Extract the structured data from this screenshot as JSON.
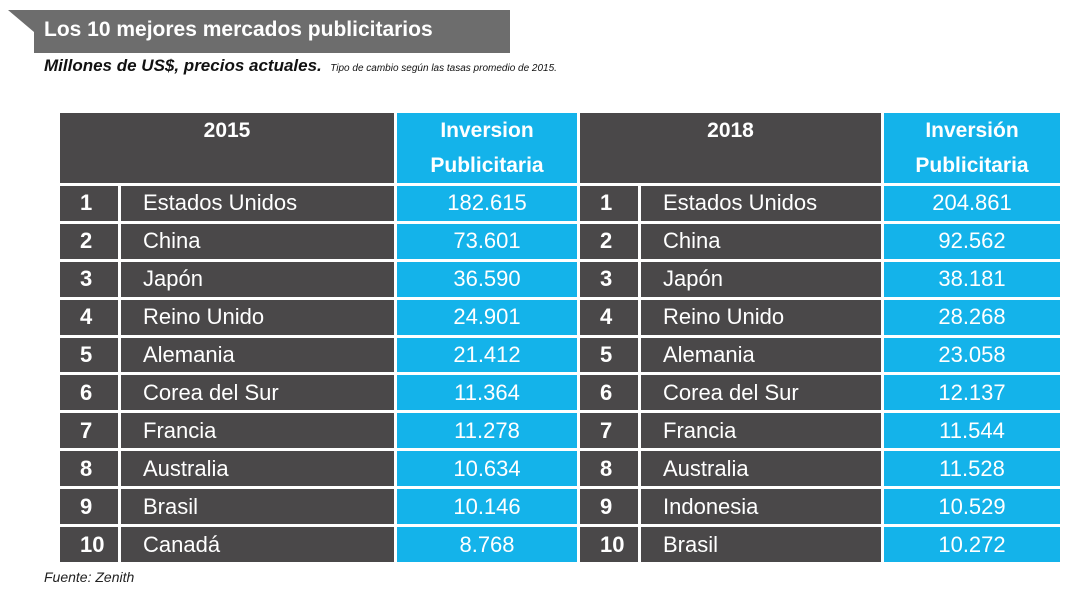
{
  "title": "Los 10 mejores mercados publicitarios",
  "subtitle": "Millones de US$, precios actuales.",
  "subtitle_note": "Tipo de cambio según las tasas promedio de 2015.",
  "source": "Fuente: Zenith",
  "colors": {
    "header_bar": "#6d6d6d",
    "dark_cell": "#4a4849",
    "blue_cell": "#14b3ea"
  },
  "table": {
    "left": {
      "year": "2015",
      "investment_header": "Inversion Publicitaria"
    },
    "right": {
      "year": "2018",
      "investment_header": "Inversión Publicitaria"
    },
    "rows": [
      {
        "rank": "1",
        "country_2015": "Estados Unidos",
        "value_2015": "182.615",
        "country_2018": "Estados Unidos",
        "value_2018": "204.861"
      },
      {
        "rank": "2",
        "country_2015": "China",
        "value_2015": "73.601",
        "country_2018": "China",
        "value_2018": "92.562"
      },
      {
        "rank": "3",
        "country_2015": "Japón",
        "value_2015": "36.590",
        "country_2018": "Japón",
        "value_2018": "38.181"
      },
      {
        "rank": "4",
        "country_2015": "Reino Unido",
        "value_2015": "24.901",
        "country_2018": "Reino Unido",
        "value_2018": "28.268"
      },
      {
        "rank": "5",
        "country_2015": "Alemania",
        "value_2015": "21.412",
        "country_2018": "Alemania",
        "value_2018": "23.058"
      },
      {
        "rank": "6",
        "country_2015": "Corea del Sur",
        "value_2015": "11.364",
        "country_2018": "Corea del Sur",
        "value_2018": "12.137"
      },
      {
        "rank": "7",
        "country_2015": "Francia",
        "value_2015": "11.278",
        "country_2018": "Francia",
        "value_2018": "11.544"
      },
      {
        "rank": "8",
        "country_2015": "Australia",
        "value_2015": "10.634",
        "country_2018": "Australia",
        "value_2018": "11.528"
      },
      {
        "rank": "9",
        "country_2015": "Brasil",
        "value_2015": "10.146",
        "country_2018": "Indonesia",
        "value_2018": "10.529"
      },
      {
        "rank": "10",
        "country_2015": "Canadá",
        "value_2015": "8.768",
        "country_2018": "Brasil",
        "value_2018": "10.272"
      }
    ]
  }
}
